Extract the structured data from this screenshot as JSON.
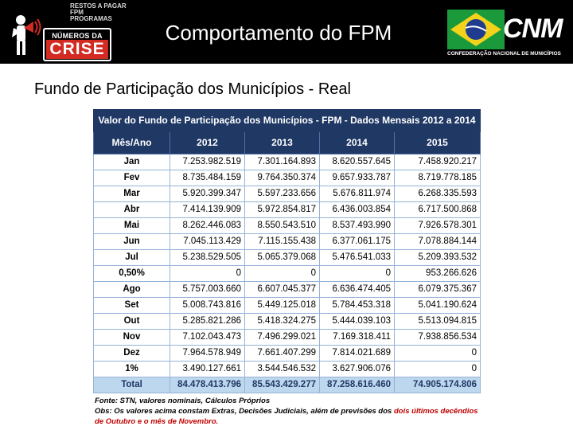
{
  "header": {
    "title": "Comportamento do FPM",
    "left_logo": {
      "tagline": [
        "RESTOS A PAGAR",
        "FPM",
        "PROGRAMAS"
      ],
      "line1": "NÚMEROS DA",
      "line2": "CRISE"
    },
    "right_logo": {
      "mark": "CNM",
      "full_name": "CONFEDERAÇÃO NACIONAL DE MUNICÍPIOS"
    }
  },
  "subtitle": "Fundo de Participação dos Municípios - Real",
  "table": {
    "title": "Valor do Fundo de Participação dos Municípios - FPM - Dados Mensais 2012 a 2014",
    "columns": [
      "Mês/Ano",
      "2012",
      "2013",
      "2014",
      "2015"
    ],
    "rows": [
      {
        "label": "Jan",
        "values": [
          "7.253.982.519",
          "7.301.164.893",
          "8.620.557.645",
          "7.458.920.217"
        ]
      },
      {
        "label": "Fev",
        "values": [
          "8.735.484.159",
          "9.764.350.374",
          "9.657.933.787",
          "8.719.778.185"
        ]
      },
      {
        "label": "Mar",
        "values": [
          "5.920.399.347",
          "5.597.233.656",
          "5.676.811.974",
          "6.268.335.593"
        ]
      },
      {
        "label": "Abr",
        "values": [
          "7.414.139.909",
          "5.972.854.817",
          "6.436.003.854",
          "6.717.500.868"
        ]
      },
      {
        "label": "Mai",
        "values": [
          "8.262.446.083",
          "8.550.543.510",
          "8.537.493.990",
          "7.926.578.301"
        ]
      },
      {
        "label": "Jun",
        "values": [
          "7.045.113.429",
          "7.115.155.438",
          "6.377.061.175",
          "7.078.884.144"
        ]
      },
      {
        "label": "Jul",
        "values": [
          "5.238.529.505",
          "5.065.379.068",
          "5.476.541.033",
          "5.209.393.532"
        ]
      },
      {
        "label": "0,50%",
        "values": [
          "0",
          "0",
          "0",
          "953.266.626"
        ]
      },
      {
        "label": "Ago",
        "values": [
          "5.757.003.660",
          "6.607.045.377",
          "6.636.474.405",
          "6.079.375.367"
        ]
      },
      {
        "label": "Set",
        "values": [
          "5.008.743.816",
          "5.449.125.018",
          "5.784.453.318",
          "5.041.190.624"
        ]
      },
      {
        "label": "Out",
        "values": [
          "5.285.821.286",
          "5.418.324.275",
          "5.444.039.103",
          "5.513.094.815"
        ]
      },
      {
        "label": "Nov",
        "values": [
          "7.102.043.473",
          "7.496.299.021",
          "7.169.318.411",
          "7.938.856.534"
        ]
      },
      {
        "label": "Dez",
        "values": [
          "7.964.578.949",
          "7.661.407.299",
          "7.814.021.689",
          "0"
        ]
      },
      {
        "label": "1%",
        "values": [
          "3.490.127.661",
          "3.544.546.532",
          "3.627.906.076",
          "0"
        ]
      }
    ],
    "total": {
      "label": "Total",
      "values": [
        "84.478.413.796",
        "85.543.429.277",
        "87.258.616.460",
        "74.905.174.806"
      ]
    }
  },
  "notes": {
    "source": "Fonte: STN, valores nominais, Cálculos Próprios",
    "obs_black": "Obs: Os valores acima constam Extras, Decisões Judiciais, além de previsões dos ",
    "obs_red1": "dois últimos decêndios",
    "obs_red2": "de Outubro e o mês de Novembro."
  },
  "colors": {
    "header_bg": "#000000",
    "table_header": "#1f3864",
    "total_row": "#bdd7ee",
    "grid": "#95b3d7",
    "crise_red": "#d32a22",
    "note_red": "#c00000",
    "flag_green": "#1a9a3a",
    "flag_yellow": "#f2d21b",
    "flag_blue": "#1f3c8f"
  }
}
